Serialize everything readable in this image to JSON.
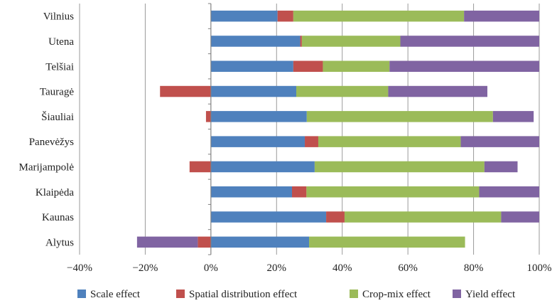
{
  "chart_data": {
    "type": "bar",
    "orientation": "horizontal",
    "stacked": true,
    "title": "",
    "xlabel": "",
    "ylabel": "",
    "xlim": [
      -40,
      100
    ],
    "x_ticks": [
      -40,
      -20,
      0,
      20,
      40,
      60,
      80,
      100
    ],
    "x_tick_labels": [
      "−40%",
      "−20%",
      "0%",
      "20%",
      "40%",
      "60%",
      "80%",
      "100%"
    ],
    "grid": "vertical",
    "legend_position": "bottom",
    "categories": [
      "Vilnius",
      "Utena",
      "Telšiai",
      "Tauragė",
      "Šiauliai",
      "Panevėžys",
      "Marijampolė",
      "Klaipėda",
      "Kaunas",
      "Alytus"
    ],
    "series": [
      {
        "name": "Scale effect",
        "color": "#4f81bd",
        "values": [
          20.3,
          27.2,
          25.1,
          26.0,
          29.2,
          28.6,
          31.6,
          24.7,
          35.1,
          29.9
        ]
      },
      {
        "name": "Spatial distribution effect",
        "color": "#c0504d",
        "values": [
          4.8,
          0.5,
          9.0,
          -15.5,
          -1.5,
          4.1,
          -6.5,
          4.4,
          5.6,
          -4.0
        ]
      },
      {
        "name": "Crop-mix effect",
        "color": "#9bbb59",
        "values": [
          52.0,
          30.0,
          20.3,
          28.0,
          56.7,
          43.4,
          51.7,
          52.6,
          47.7,
          47.5
        ]
      },
      {
        "name": "Yield effect",
        "color": "#8064a2",
        "values": [
          22.9,
          42.3,
          45.6,
          30.2,
          12.4,
          23.9,
          10.1,
          18.3,
          11.6,
          -18.5
        ]
      }
    ]
  }
}
